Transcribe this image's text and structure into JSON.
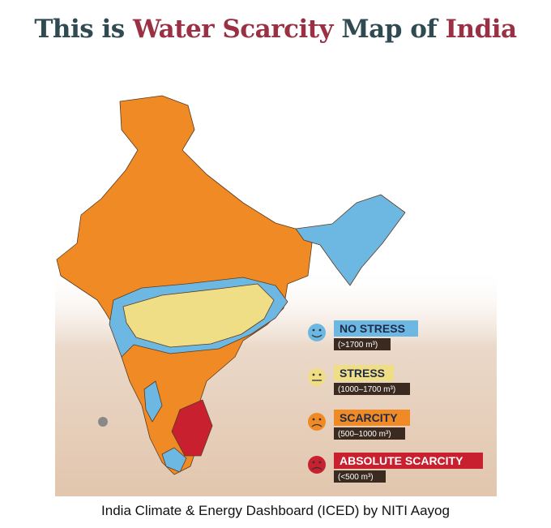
{
  "title": {
    "parts": [
      "This is",
      "Water Scarcity",
      "Map of",
      "India"
    ]
  },
  "legend": [
    {
      "label": "NO STRESS",
      "range": "(>1700 m³)",
      "color": "#6db8e2"
    },
    {
      "label": "STRESS",
      "range": "(1000–1700 m³)",
      "color": "#f0de86"
    },
    {
      "label": "SCARCITY",
      "range": "(500–1000 m³)",
      "color": "#f08a24"
    },
    {
      "label": "ABSOLUTE SCARCITY",
      "range": "(<500 m³)",
      "color": "#c8202f"
    }
  ],
  "footer": "India Climate & Energy Dashboard (ICED) by NITI Aayog"
}
